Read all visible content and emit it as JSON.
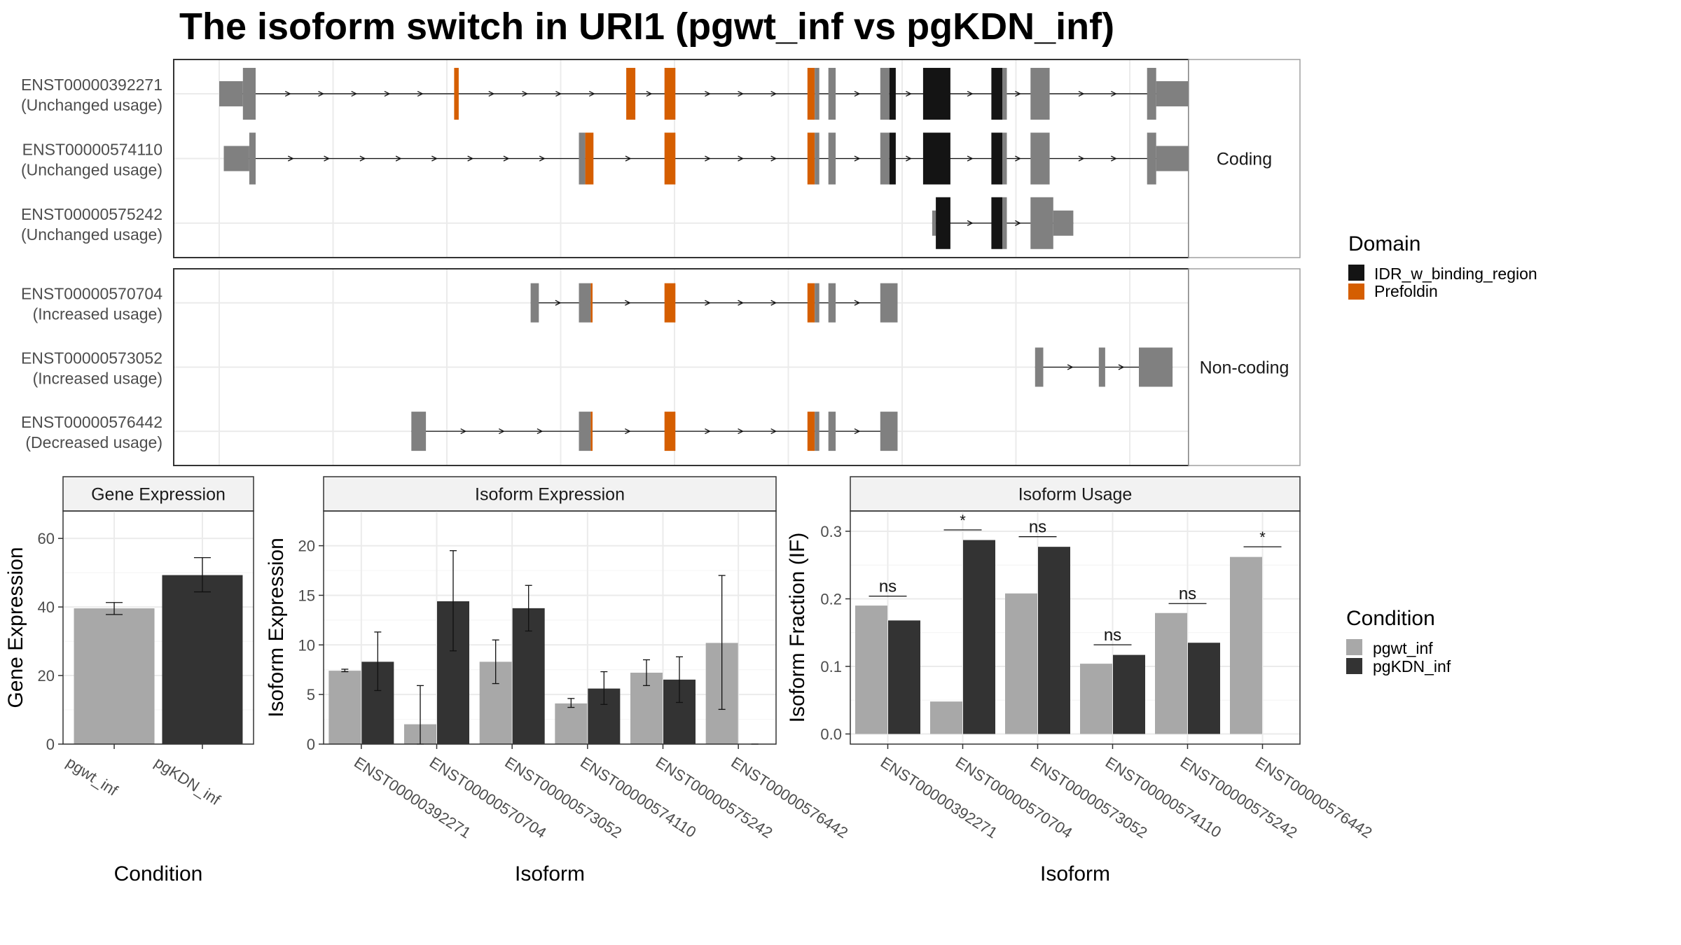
{
  "title": "The isoform switch in URI1 (pgwt_inf vs pgKDN_inf)",
  "colors": {
    "exon": "#808080",
    "idr": "#141414",
    "prefoldin": "#D55E00",
    "pgwt_inf": "#A8A8A8",
    "pgKDN_inf": "#333333",
    "strip": "#F2F2F2",
    "grid": "#EBEBEB",
    "panel_border": "#333333"
  },
  "legends": {
    "domain": {
      "title": "Domain",
      "items": [
        {
          "label": "IDR_w_binding_region",
          "color": "#141414"
        },
        {
          "label": "Prefoldin",
          "color": "#D55E00"
        }
      ]
    },
    "condition": {
      "title": "Condition",
      "items": [
        {
          "label": "pgwt_inf",
          "color": "#A8A8A8"
        },
        {
          "label": "pgKDN_inf",
          "color": "#333333"
        }
      ]
    }
  },
  "chart_data": [
    {
      "type": "gene_structure",
      "panels": [
        {
          "strip_label": "Coding",
          "transcripts": [
            {
              "id": "ENST00000392271",
              "usage": "(Unchanged usage)",
              "exons": [
                {
                  "start": 0.0,
                  "end": 2.6,
                  "h": "utr"
                },
                {
                  "start": 2.6,
                  "end": 4.0,
                  "h": "cds"
                },
                {
                  "start": 25.8,
                  "end": 26.3,
                  "h": "pref"
                },
                {
                  "start": 44.7,
                  "end": 45.7,
                  "h": "pref"
                },
                {
                  "start": 48.9,
                  "end": 50.1,
                  "h": "pref"
                },
                {
                  "start": 64.6,
                  "end": 65.4,
                  "h": "pref"
                },
                {
                  "start": 65.4,
                  "end": 65.9,
                  "h": "cds"
                },
                {
                  "start": 66.9,
                  "end": 67.7,
                  "h": "cds"
                },
                {
                  "start": 72.6,
                  "end": 73.6,
                  "h": "cds"
                },
                {
                  "start": 73.6,
                  "end": 74.3,
                  "h": "idr"
                },
                {
                  "start": 77.3,
                  "end": 80.3,
                  "h": "idr"
                },
                {
                  "start": 84.8,
                  "end": 86.0,
                  "h": "idr"
                },
                {
                  "start": 86.0,
                  "end": 86.5,
                  "h": "cds"
                },
                {
                  "start": 89.1,
                  "end": 91.2,
                  "h": "cds"
                },
                {
                  "start": 101.9,
                  "end": 102.9,
                  "h": "cds"
                },
                {
                  "start": 102.9,
                  "end": 108.2,
                  "h": "utr"
                }
              ]
            },
            {
              "id": "ENST00000574110",
              "usage": "(Unchanged usage)",
              "exons": [
                {
                  "start": 0.5,
                  "end": 3.3,
                  "h": "utr"
                },
                {
                  "start": 3.3,
                  "end": 4.0,
                  "h": "cds"
                },
                {
                  "start": 39.5,
                  "end": 40.2,
                  "h": "cds"
                },
                {
                  "start": 40.2,
                  "end": 41.1,
                  "h": "pref"
                },
                {
                  "start": 48.9,
                  "end": 50.1,
                  "h": "pref"
                },
                {
                  "start": 64.6,
                  "end": 65.4,
                  "h": "pref"
                },
                {
                  "start": 65.4,
                  "end": 65.9,
                  "h": "cds"
                },
                {
                  "start": 66.9,
                  "end": 67.7,
                  "h": "cds"
                },
                {
                  "start": 72.6,
                  "end": 73.6,
                  "h": "cds"
                },
                {
                  "start": 73.6,
                  "end": 74.3,
                  "h": "idr"
                },
                {
                  "start": 77.3,
                  "end": 80.3,
                  "h": "idr"
                },
                {
                  "start": 84.8,
                  "end": 86.0,
                  "h": "idr"
                },
                {
                  "start": 86.0,
                  "end": 86.5,
                  "h": "cds"
                },
                {
                  "start": 89.1,
                  "end": 91.2,
                  "h": "cds"
                },
                {
                  "start": 101.9,
                  "end": 102.9,
                  "h": "cds"
                },
                {
                  "start": 102.9,
                  "end": 108.2,
                  "h": "utr"
                }
              ]
            },
            {
              "id": "ENST00000575242",
              "usage": "(Unchanged usage)",
              "exons": [
                {
                  "start": 78.3,
                  "end": 78.7,
                  "h": "utr"
                },
                {
                  "start": 78.7,
                  "end": 80.3,
                  "h": "idr"
                },
                {
                  "start": 84.8,
                  "end": 86.0,
                  "h": "idr"
                },
                {
                  "start": 86.0,
                  "end": 86.5,
                  "h": "cds"
                },
                {
                  "start": 89.1,
                  "end": 91.6,
                  "h": "cds"
                },
                {
                  "start": 91.6,
                  "end": 93.8,
                  "h": "utr"
                }
              ]
            }
          ]
        },
        {
          "strip_label": "Non-coding",
          "transcripts": [
            {
              "id": "ENST00000570704",
              "usage": "(Increased usage)",
              "exons": [
                {
                  "start": 34.2,
                  "end": 35.1,
                  "h": "nc"
                },
                {
                  "start": 39.5,
                  "end": 40.8,
                  "h": "nc"
                },
                {
                  "start": 40.8,
                  "end": 41.0,
                  "h": "prefnc"
                },
                {
                  "start": 48.9,
                  "end": 50.1,
                  "h": "prefnc"
                },
                {
                  "start": 64.6,
                  "end": 65.4,
                  "h": "prefnc"
                },
                {
                  "start": 65.4,
                  "end": 65.9,
                  "h": "nc"
                },
                {
                  "start": 66.9,
                  "end": 67.7,
                  "h": "nc"
                },
                {
                  "start": 72.6,
                  "end": 74.5,
                  "h": "nc"
                }
              ]
            },
            {
              "id": "ENST00000573052",
              "usage": "(Increased usage)",
              "exons": [
                {
                  "start": 89.6,
                  "end": 90.5,
                  "h": "nc"
                },
                {
                  "start": 96.6,
                  "end": 97.3,
                  "h": "nc"
                },
                {
                  "start": 101.0,
                  "end": 104.7,
                  "h": "nc"
                }
              ]
            },
            {
              "id": "ENST00000576442",
              "usage": "(Decreased usage)",
              "exons": [
                {
                  "start": 21.1,
                  "end": 22.7,
                  "h": "nc"
                },
                {
                  "start": 39.5,
                  "end": 40.8,
                  "h": "nc"
                },
                {
                  "start": 40.8,
                  "end": 41.0,
                  "h": "prefnc"
                },
                {
                  "start": 48.9,
                  "end": 50.1,
                  "h": "prefnc"
                },
                {
                  "start": 64.6,
                  "end": 65.4,
                  "h": "prefnc"
                },
                {
                  "start": 65.4,
                  "end": 65.9,
                  "h": "nc"
                },
                {
                  "start": 66.9,
                  "end": 67.7,
                  "h": "nc"
                },
                {
                  "start": 72.6,
                  "end": 74.5,
                  "h": "nc"
                }
              ]
            }
          ]
        }
      ]
    },
    {
      "type": "bar",
      "title": "Gene Expression",
      "xlabel": "Condition",
      "ylabel": "Gene Expression",
      "ylim": [
        0,
        68
      ],
      "yticks": [
        0,
        20,
        40,
        60
      ],
      "categories": [
        "pgwt_inf",
        "pgKDN_inf"
      ],
      "values": [
        39.6,
        49.3
      ],
      "errors": [
        [
          37.8,
          41.3
        ],
        [
          44.4,
          54.4
        ]
      ]
    },
    {
      "type": "bar",
      "title": "Isoform Expression",
      "xlabel": "Isoform",
      "ylabel": "Isoform Expression",
      "ylim": [
        0,
        23.5
      ],
      "yticks": [
        0,
        5,
        10,
        15,
        20
      ],
      "categories": [
        "ENST00000392271",
        "ENST00000570704",
        "ENST00000573052",
        "ENST00000574110",
        "ENST00000575242",
        "ENST00000576442"
      ],
      "series": [
        {
          "name": "pgwt_inf",
          "values": [
            7.4,
            2.0,
            8.3,
            4.1,
            7.2,
            10.2
          ],
          "errors": [
            [
              7.3,
              7.55
            ],
            [
              0.0,
              5.9
            ],
            [
              6.1,
              10.5
            ],
            [
              3.7,
              4.6
            ],
            [
              5.9,
              8.5
            ],
            [
              3.5,
              17.0
            ]
          ]
        },
        {
          "name": "pgKDN_inf",
          "values": [
            8.3,
            14.4,
            13.7,
            5.6,
            6.5,
            0.0
          ],
          "errors": [
            [
              5.4,
              11.3
            ],
            [
              9.4,
              19.5
            ],
            [
              11.4,
              16.0
            ],
            [
              4.0,
              7.3
            ],
            [
              4.2,
              8.8
            ],
            [
              0.0,
              0.0
            ]
          ]
        }
      ]
    },
    {
      "type": "bar",
      "title": "Isoform Usage",
      "xlabel": "Isoform",
      "ylabel": "Isoform Fraction (IF)",
      "ylim": [
        -0.015,
        0.33
      ],
      "yticks": [
        0.0,
        0.1,
        0.2,
        0.3
      ],
      "ytick_labels": [
        "0.0",
        "0.1",
        "0.2",
        "0.3"
      ],
      "categories": [
        "ENST00000392271",
        "ENST00000570704",
        "ENST00000573052",
        "ENST00000574110",
        "ENST00000575242",
        "ENST00000576442"
      ],
      "series": [
        {
          "name": "pgwt_inf",
          "values": [
            0.19,
            0.048,
            0.208,
            0.104,
            0.179,
            0.262
          ]
        },
        {
          "name": "pgKDN_inf",
          "values": [
            0.168,
            0.287,
            0.277,
            0.117,
            0.135,
            0.0
          ]
        }
      ],
      "significance": [
        {
          "label": "ns",
          "y": 0.204
        },
        {
          "label": "*",
          "y": 0.302
        },
        {
          "label": "ns",
          "y": 0.292
        },
        {
          "label": "ns",
          "y": 0.132
        },
        {
          "label": "ns",
          "y": 0.193
        },
        {
          "label": "*",
          "y": 0.277
        }
      ]
    }
  ]
}
